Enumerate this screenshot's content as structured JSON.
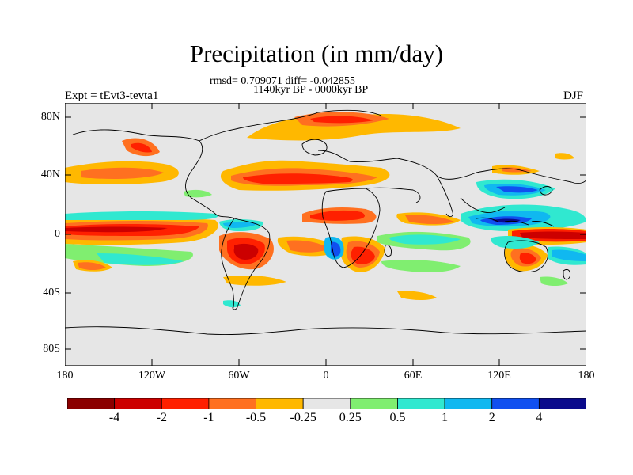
{
  "title": "Precipitation (in mm/day)",
  "stats_line": "rmsd= 0.709071 diff= -0.042855",
  "period": "1140kyr BP - 0000kyr BP",
  "experiment_label": "Expt = tEvt3-tevta1",
  "season": "DJF",
  "lat_labels": [
    "80N",
    "40N",
    "0",
    "40S",
    "80S"
  ],
  "lon_labels": [
    "180",
    "120W",
    "60W",
    "0",
    "60E",
    "120E",
    "180"
  ],
  "colorbar": {
    "labels": [
      "-4",
      "-2",
      "-1",
      "-0.5",
      "-0.25",
      "0.25",
      "0.5",
      "1",
      "2",
      "4"
    ],
    "colors": [
      "#8b0000",
      "#cc0000",
      "#ff2000",
      "#ff7020",
      "#ffb800",
      "#e6e6e6",
      "#80ee70",
      "#30e8d0",
      "#10b8f0",
      "#1050f0",
      "#0a0a8c"
    ]
  },
  "map_background": "#e6e6e6"
}
